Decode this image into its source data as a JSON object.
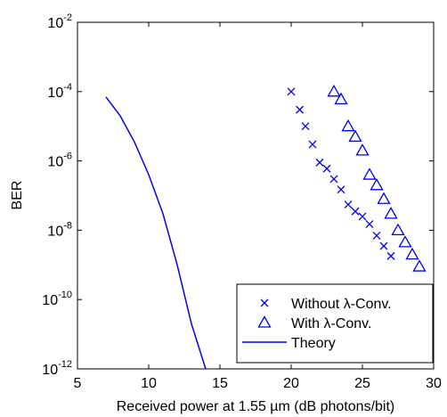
{
  "chart_data": {
    "type": "line",
    "xlabel": "Received power at 1.55 µm (dB photons/bit)",
    "ylabel": "BER",
    "xlim": [
      5,
      30
    ],
    "ylim_exponent": [
      -12,
      -2
    ],
    "yscale": "log",
    "x_ticks": [
      "5",
      "10",
      "15",
      "20",
      "25",
      "30"
    ],
    "y_ticks": [
      {
        "base": "10",
        "exp": "-2"
      },
      {
        "base": "10",
        "exp": "-4"
      },
      {
        "base": "10",
        "exp": "-6"
      },
      {
        "base": "10",
        "exp": "-8"
      },
      {
        "base": "10",
        "exp": "-10"
      },
      {
        "base": "10",
        "exp": "-12"
      }
    ],
    "grid": false,
    "legend_position": "bottom-right",
    "series": [
      {
        "name": "Without λ-Conv.",
        "marker": "x",
        "color": "#0000ff",
        "points": [
          {
            "x": 20.0,
            "y": 0.0001
          },
          {
            "x": 20.6,
            "y": 3e-05
          },
          {
            "x": 21.0,
            "y": 1e-05
          },
          {
            "x": 21.5,
            "y": 3e-06
          },
          {
            "x": 22.0,
            "y": 9e-07
          },
          {
            "x": 22.5,
            "y": 6e-07
          },
          {
            "x": 23.0,
            "y": 3e-07
          },
          {
            "x": 23.5,
            "y": 1.5e-07
          },
          {
            "x": 24.0,
            "y": 5.5e-08
          },
          {
            "x": 24.5,
            "y": 3.5e-08
          },
          {
            "x": 25.0,
            "y": 2.5e-08
          },
          {
            "x": 25.5,
            "y": 1.5e-08
          },
          {
            "x": 26.0,
            "y": 7e-09
          },
          {
            "x": 26.5,
            "y": 3.5e-09
          },
          {
            "x": 27.0,
            "y": 1.8e-09
          }
        ]
      },
      {
        "name": "With λ-Conv.",
        "marker": "triangle",
        "color": "#0000ff",
        "points": [
          {
            "x": 23.0,
            "y": 0.0001
          },
          {
            "x": 23.5,
            "y": 6e-05
          },
          {
            "x": 24.0,
            "y": 1e-05
          },
          {
            "x": 24.5,
            "y": 5e-06
          },
          {
            "x": 25.0,
            "y": 2e-06
          },
          {
            "x": 25.5,
            "y": 4e-07
          },
          {
            "x": 26.0,
            "y": 2e-07
          },
          {
            "x": 26.5,
            "y": 8e-08
          },
          {
            "x": 27.0,
            "y": 3e-08
          },
          {
            "x": 27.5,
            "y": 1e-08
          },
          {
            "x": 28.0,
            "y": 4.5e-09
          },
          {
            "x": 28.5,
            "y": 2e-09
          },
          {
            "x": 29.0,
            "y": 9e-10
          }
        ]
      },
      {
        "name": "Theory",
        "marker": "line",
        "color": "#0000ff",
        "points": [
          {
            "x": 7.0,
            "y": 7e-05
          },
          {
            "x": 8.0,
            "y": 2e-05
          },
          {
            "x": 9.0,
            "y": 3.5e-06
          },
          {
            "x": 10.0,
            "y": 4e-07
          },
          {
            "x": 11.0,
            "y": 3e-08
          },
          {
            "x": 12.0,
            "y": 1e-09
          },
          {
            "x": 13.0,
            "y": 2e-11
          },
          {
            "x": 14.0,
            "y": 1e-12
          }
        ]
      }
    ]
  }
}
